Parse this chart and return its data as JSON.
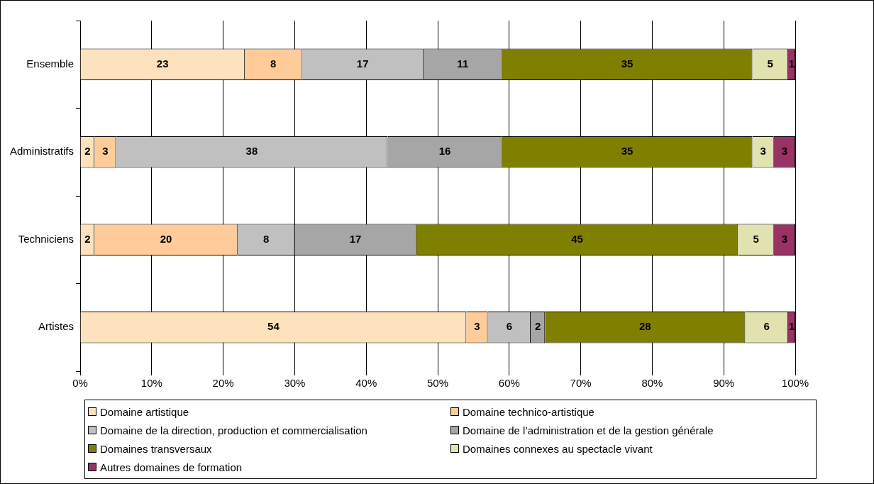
{
  "chart_data": {
    "type": "bar",
    "orientation": "horizontal",
    "stacked": true,
    "categories": [
      "Ensemble",
      "Administratifs",
      "Techniciens",
      "Artistes"
    ],
    "series": [
      {
        "name": "Domaine artistique",
        "color": "#fde2bd",
        "values": [
          23,
          2,
          2,
          54
        ]
      },
      {
        "name": "Domaine technico-artistique",
        "color": "#ffcc99",
        "values": [
          8,
          3,
          20,
          3
        ]
      },
      {
        "name": "Domaine de la direction, production et commercialisation",
        "color": "#c0c0c0",
        "values": [
          17,
          38,
          8,
          6
        ]
      },
      {
        "name": "Domaine de l’administration et de la gestion générale",
        "color": "#a6a6a6",
        "values": [
          11,
          16,
          17,
          2
        ]
      },
      {
        "name": "Domaines transversaux",
        "color": "#808000",
        "values": [
          35,
          35,
          45,
          28
        ]
      },
      {
        "name": "Domaines connexes au spectacle vivant",
        "color": "#e2e2b0",
        "values": [
          5,
          3,
          5,
          6
        ]
      },
      {
        "name": "Autres domaines de formation",
        "color": "#993366",
        "values": [
          1,
          3,
          3,
          1
        ]
      }
    ],
    "xlim": [
      0,
      100
    ],
    "xticks": [
      {
        "value": 0,
        "label": "0%"
      },
      {
        "value": 10,
        "label": "10%"
      },
      {
        "value": 20,
        "label": "20%"
      },
      {
        "value": 30,
        "label": "30%"
      },
      {
        "value": 40,
        "label": "40%"
      },
      {
        "value": 50,
        "label": "50%"
      },
      {
        "value": 60,
        "label": "60%"
      },
      {
        "value": 70,
        "label": "70%"
      },
      {
        "value": 80,
        "label": "80%"
      },
      {
        "value": 90,
        "label": "90%"
      },
      {
        "value": 100,
        "label": "100%"
      }
    ],
    "grid": "x",
    "legend": "bottom",
    "data_labels": true
  }
}
